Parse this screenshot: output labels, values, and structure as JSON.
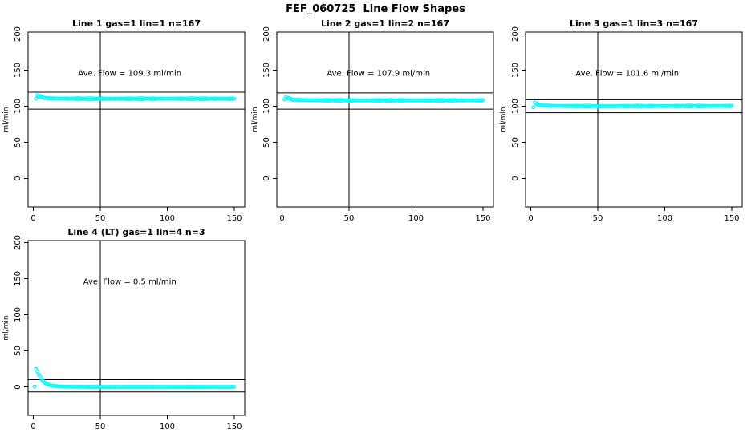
{
  "page_title": "FEF_060725  Line Flow Shapes",
  "colors": {
    "marker": "#00ffff",
    "axis": "#000000",
    "background": "#ffffff"
  },
  "chart_data": {
    "type": "scatter",
    "title": "FEF_060725  Line Flow Shapes",
    "ylabel": "ml/min",
    "xlabel": "",
    "x_ticks": [
      "0",
      "50",
      "100",
      "150"
    ],
    "x_tick_values": [
      0,
      50,
      100,
      150
    ],
    "y_ticks": [
      "0",
      "50",
      "100",
      "150",
      "200"
    ],
    "y_tick_values": [
      0,
      50,
      100,
      150,
      200
    ],
    "xlim": [
      -4,
      158
    ],
    "ylim": [
      -39,
      204
    ],
    "grid": false,
    "legend": "none",
    "marker": "open-circle",
    "marker_color": "#00ffff",
    "vline_x": 50,
    "panels": [
      {
        "title": "Line 1 gas=1 lin=1 n=167",
        "ave_label": "Ave. Flow =  109.3  ml/min",
        "ave_flow": 109.3,
        "n": 167,
        "hlines": [
          119.5,
          96
        ],
        "noise": 0.9,
        "series_anchors": [
          [
            2,
            111
          ],
          [
            3,
            114.5
          ],
          [
            4,
            114
          ],
          [
            6,
            112.5
          ],
          [
            8,
            111.5
          ],
          [
            12,
            110.8
          ],
          [
            20,
            110.5
          ],
          [
            50,
            110.3
          ],
          [
            100,
            110.4
          ],
          [
            150,
            110.3
          ]
        ],
        "extra_points": []
      },
      {
        "title": "Line 2 gas=1 lin=2 n=167",
        "ave_label": "Ave. Flow =  107.9  ml/min",
        "ave_flow": 107.9,
        "n": 167,
        "hlines": [
          118.5,
          96
        ],
        "noise": 0.9,
        "series_anchors": [
          [
            2,
            110
          ],
          [
            3,
            112
          ],
          [
            4,
            111.5
          ],
          [
            6,
            110
          ],
          [
            8,
            109.2
          ],
          [
            12,
            108.7
          ],
          [
            20,
            108.3
          ],
          [
            50,
            108
          ],
          [
            100,
            108
          ],
          [
            150,
            108.1
          ]
        ],
        "extra_points": []
      },
      {
        "title": "Line 3 gas=1 lin=3 n=167",
        "ave_label": "Ave. Flow =  101.6  ml/min",
        "ave_flow": 101.6,
        "n": 167,
        "hlines": [
          109,
          91
        ],
        "noise": 0.9,
        "series_anchors": [
          [
            2,
            99
          ],
          [
            3,
            104.5
          ],
          [
            4,
            103.5
          ],
          [
            6,
            102
          ],
          [
            8,
            101.2
          ],
          [
            12,
            100.7
          ],
          [
            20,
            100.3
          ],
          [
            50,
            100
          ],
          [
            100,
            100.2
          ],
          [
            150,
            100.3
          ]
        ],
        "extra_points": []
      },
      {
        "title": "Line 4 (LT) gas=1 lin=4 n=3",
        "ave_label": "Ave. Flow =  0.5  ml/min",
        "ave_flow": 0.5,
        "n": 3,
        "hlines": [
          10,
          -7
        ],
        "noise": 0.25,
        "series_anchors": [
          [
            2,
            25
          ],
          [
            3,
            21
          ],
          [
            4,
            17.5
          ],
          [
            5,
            14
          ],
          [
            6,
            11
          ],
          [
            7,
            8.5
          ],
          [
            8,
            6.5
          ],
          [
            9,
            5
          ],
          [
            10,
            4
          ],
          [
            12,
            2.5
          ],
          [
            14,
            1.6
          ],
          [
            16,
            1
          ],
          [
            18,
            0.7
          ],
          [
            20,
            0.4
          ],
          [
            25,
            0.2
          ],
          [
            30,
            0.1
          ],
          [
            40,
            0
          ],
          [
            60,
            0
          ],
          [
            100,
            0
          ],
          [
            150,
            0
          ]
        ],
        "extra_points": [
          [
            1,
            0.5
          ]
        ]
      }
    ]
  }
}
